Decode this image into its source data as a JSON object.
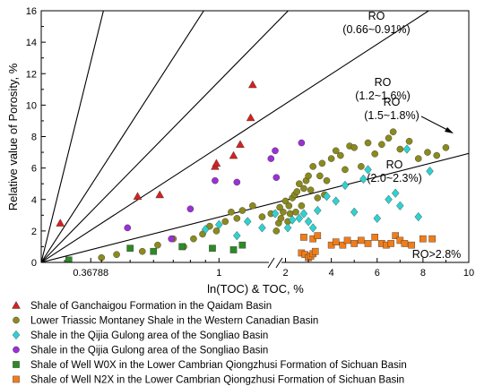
{
  "chart_data": {
    "type": "scatter",
    "xlabel": "ln(TOC) & TOC, %",
    "ylabel": "Relative value of Porosity, %",
    "ylim": [
      0,
      16
    ],
    "x_segments": [
      {
        "scale": "log",
        "range": [
          0.25,
          1.55
        ],
        "ticks": [
          {
            "v": 0.36788,
            "label": "0.36788"
          },
          {
            "v": 1,
            "label": "1"
          }
        ],
        "minor": [
          0.3,
          0.4,
          0.5,
          0.6,
          0.7,
          0.8,
          0.9
        ]
      },
      {
        "scale": "linear",
        "range": [
          1.55,
          10
        ],
        "ticks": [
          {
            "v": 2,
            "label": "2"
          },
          {
            "v": 4,
            "label": "4"
          },
          {
            "v": 6,
            "label": "6"
          },
          {
            "v": 8,
            "label": "8"
          },
          {
            "v": 10,
            "label": "10"
          }
        ]
      }
    ],
    "y_ticks": [
      0,
      2,
      4,
      6,
      8,
      10,
      12,
      14,
      16
    ],
    "ro_lines": [
      {
        "label_lines": [
          "RO",
          "(0.66~0.91%)"
        ],
        "slope": 4.05
      },
      {
        "label_lines": [
          "RO",
          "(1.2~1.6%)"
        ],
        "slope": 1.55
      },
      {
        "label_lines": [
          "RO",
          "(1.5~1.8%)"
        ],
        "slope": 1.02
      },
      {
        "label_lines": [
          "RO",
          "(2.0~2.3%)"
        ],
        "slope": 0.65
      },
      {
        "label_lines": [
          "RO>2.8%"
        ],
        "slope": 0.255
      }
    ],
    "series": [
      {
        "name": "Shale of Ganchaigou Formation in the Qaidam Basin",
        "marker": "triangle",
        "color": "#d62020",
        "points": [
          [
            0.29,
            2.5
          ],
          [
            0.53,
            4.2
          ],
          [
            0.63,
            4.3
          ],
          [
            0.97,
            6.1
          ],
          [
            0.98,
            6.3
          ],
          [
            1.12,
            6.8
          ],
          [
            1.18,
            7.5
          ],
          [
            1.28,
            9.2
          ],
          [
            1.3,
            11.3
          ]
        ]
      },
      {
        "name": "Lower Triassic Montaney Shale in the Western Canadian Basin",
        "marker": "circle",
        "color": "#8a8a1e",
        "points": [
          [
            0.4,
            0.3
          ],
          [
            0.45,
            0.5
          ],
          [
            0.55,
            0.7
          ],
          [
            0.62,
            1.1
          ],
          [
            0.7,
            1.5
          ],
          [
            0.76,
            1.0
          ],
          [
            0.82,
            1.5
          ],
          [
            0.88,
            1.8
          ],
          [
            0.93,
            2.3
          ],
          [
            0.98,
            2.0
          ],
          [
            1.05,
            2.6
          ],
          [
            1.1,
            3.2
          ],
          [
            1.15,
            2.8
          ],
          [
            1.2,
            3.3
          ],
          [
            1.3,
            3.6
          ],
          [
            1.4,
            2.9
          ],
          [
            1.5,
            3.1
          ],
          [
            1.6,
            2.0
          ],
          [
            1.7,
            2.5
          ],
          [
            1.8,
            2.8
          ],
          [
            1.9,
            3.2
          ],
          [
            2.0,
            3.9
          ],
          [
            2.1,
            2.6
          ],
          [
            2.2,
            3.1
          ],
          [
            2.3,
            4.1
          ],
          [
            2.4,
            4.3
          ],
          [
            2.5,
            4.5
          ],
          [
            2.6,
            5.0
          ],
          [
            2.7,
            3.6
          ],
          [
            2.8,
            4.7
          ],
          [
            2.9,
            5.2
          ],
          [
            3.0,
            5.5
          ],
          [
            3.2,
            6.1
          ],
          [
            3.4,
            4.1
          ],
          [
            3.5,
            5.5
          ],
          [
            3.6,
            6.3
          ],
          [
            3.8,
            5.2
          ],
          [
            4.0,
            6.6
          ],
          [
            4.2,
            7.1
          ],
          [
            4.4,
            6.8
          ],
          [
            4.6,
            5.9
          ],
          [
            4.8,
            7.4
          ],
          [
            5.0,
            7.3
          ],
          [
            5.3,
            6.1
          ],
          [
            5.6,
            7.6
          ],
          [
            5.9,
            6.9
          ],
          [
            6.2,
            7.5
          ],
          [
            6.5,
            7.9
          ],
          [
            6.7,
            8.3
          ],
          [
            7.0,
            7.2
          ],
          [
            7.4,
            7.7
          ],
          [
            7.8,
            6.6
          ],
          [
            8.2,
            7.0
          ],
          [
            8.6,
            6.8
          ],
          [
            9.0,
            7.3
          ],
          [
            1.75,
            3.5
          ],
          [
            2.15,
            3.6
          ],
          [
            2.45,
            3.2
          ],
          [
            3.1,
            4.6
          ],
          [
            3.7,
            4.3
          ]
        ]
      },
      {
        "name": "Shale in the Qijia Gulong area of the Songliao Basin",
        "marker": "diamond",
        "color": "#2fd1d1",
        "points": [
          [
            0.9,
            2.1
          ],
          [
            1.0,
            2.4
          ],
          [
            1.15,
            1.7
          ],
          [
            1.25,
            2.6
          ],
          [
            1.4,
            2.2
          ],
          [
            1.55,
            3.1
          ],
          [
            2.3,
            2.7
          ],
          [
            2.6,
            2.8
          ],
          [
            2.8,
            3.1
          ],
          [
            3.2,
            2.2
          ],
          [
            3.4,
            3.3
          ],
          [
            3.8,
            4.2
          ],
          [
            4.2,
            3.9
          ],
          [
            4.6,
            4.9
          ],
          [
            5.0,
            3.2
          ],
          [
            5.4,
            5.3
          ],
          [
            5.6,
            5.9
          ],
          [
            6.0,
            2.8
          ],
          [
            6.5,
            4.0
          ],
          [
            6.8,
            4.4
          ],
          [
            7.0,
            3.6
          ],
          [
            7.3,
            7.2
          ],
          [
            7.8,
            2.9
          ],
          [
            8.3,
            5.8
          ],
          [
            2.1,
            2.2
          ],
          [
            3.0,
            2.6
          ]
        ]
      },
      {
        "name": "Shale in the Qijia Gulong area of the Songliao Basin",
        "marker": "circle",
        "color": "#9b30d6",
        "points": [
          [
            0.49,
            2.2
          ],
          [
            0.69,
            1.5
          ],
          [
            0.8,
            3.4
          ],
          [
            0.97,
            5.2
          ],
          [
            1.15,
            5.1
          ],
          [
            1.5,
            6.6
          ],
          [
            1.55,
            7.1
          ],
          [
            1.6,
            5.4
          ],
          [
            2.7,
            7.6
          ]
        ]
      },
      {
        "name": "Shale of Well W0X in the Lower Cambrian Qiongzhusi Formation of Sichuan Basin",
        "marker": "square",
        "color": "#2d8a25",
        "points": [
          [
            0.31,
            0.15
          ],
          [
            0.5,
            0.9
          ],
          [
            0.6,
            0.7
          ],
          [
            0.75,
            1.0
          ],
          [
            0.95,
            0.9
          ],
          [
            1.12,
            0.8
          ],
          [
            1.2,
            1.1
          ]
        ]
      },
      {
        "name": "Shale of Well N2X in the Lower Cambrian Qiongzhusi Formation of Sichuan Basin",
        "marker": "square",
        "color": "#f07d1a",
        "points": [
          [
            2.7,
            0.6
          ],
          [
            2.85,
            0.5
          ],
          [
            3.0,
            0.3
          ],
          [
            3.1,
            0.4
          ],
          [
            3.2,
            0.55
          ],
          [
            3.3,
            0.7
          ],
          [
            2.8,
            1.6
          ],
          [
            3.2,
            1.5
          ],
          [
            3.4,
            1.7
          ],
          [
            4.0,
            1.1
          ],
          [
            4.2,
            1.3
          ],
          [
            4.5,
            1.1
          ],
          [
            4.7,
            1.4
          ],
          [
            5.0,
            1.2
          ],
          [
            5.3,
            1.4
          ],
          [
            5.6,
            1.2
          ],
          [
            5.9,
            1.6
          ],
          [
            6.2,
            1.2
          ],
          [
            6.4,
            1.1
          ],
          [
            6.6,
            1.2
          ],
          [
            6.8,
            1.7
          ],
          [
            7.0,
            1.4
          ],
          [
            7.2,
            1.2
          ],
          [
            7.5,
            1.1
          ],
          [
            8.0,
            1.5
          ],
          [
            8.4,
            1.5
          ]
        ]
      }
    ],
    "legend": {
      "position": "bottom"
    }
  }
}
